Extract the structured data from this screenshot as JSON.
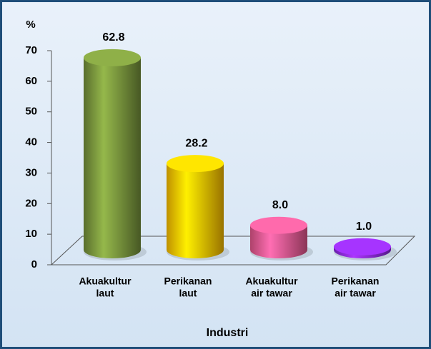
{
  "chart_data": {
    "type": "bar",
    "y_label": "%",
    "x_label": "Industri",
    "categories": [
      [
        "Akuakultur",
        "laut"
      ],
      [
        "Perikanan",
        "laut"
      ],
      [
        "Akuakultur",
        "air tawar"
      ],
      [
        "Perikanan",
        "air tawar"
      ]
    ],
    "values": [
      62.8,
      28.2,
      8.0,
      1.0
    ],
    "value_labels": [
      "62.8",
      "28.2",
      "8.0",
      "1.0"
    ],
    "colors": [
      "#77933c",
      "#ffc000",
      "#e8588f",
      "#8a2be2"
    ],
    "ylim": [
      0,
      70
    ],
    "yticks": [
      0,
      10,
      20,
      30,
      40,
      50,
      60,
      70
    ]
  }
}
